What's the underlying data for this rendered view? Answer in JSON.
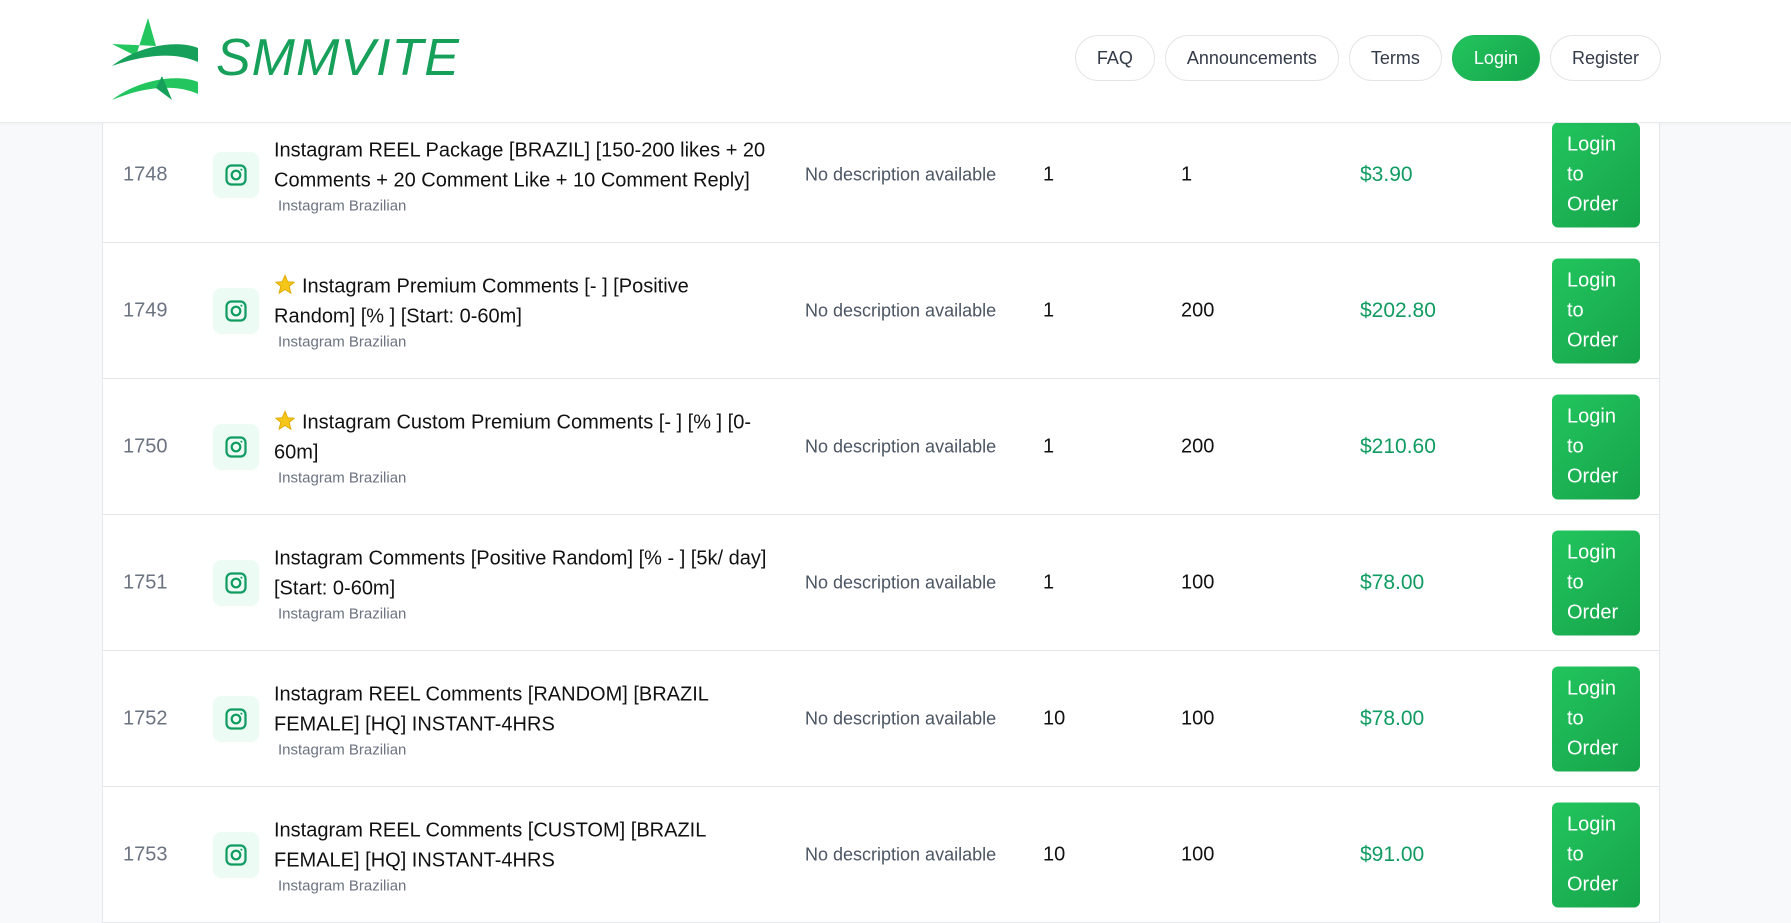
{
  "brand": {
    "name": "SMMVITE",
    "color": "#16a05a"
  },
  "nav": [
    {
      "label": "FAQ"
    },
    {
      "label": "Announcements"
    },
    {
      "label": "Terms"
    },
    {
      "label": "Login",
      "active": true
    },
    {
      "label": "Register"
    }
  ],
  "rows": [
    {
      "id": "1748",
      "icon": "instagram-icon",
      "starred": false,
      "name": "Instagram REEL Package [BRAZIL] [150-200 likes + 20 Comments + 20 Comment Like + 10 Comment Reply]",
      "category": "Instagram Brazilian",
      "description": "No description available",
      "min": "1",
      "max": "1",
      "price": "$3.90",
      "button": "Login to Order"
    },
    {
      "id": "1749",
      "icon": "instagram-icon",
      "starred": true,
      "name": "Instagram Premium Comments [- ] [Positive Random] [% ] [Start: 0-60m]",
      "category": "Instagram Brazilian",
      "description": "No description available",
      "min": "1",
      "max": "200",
      "price": "$202.80",
      "button": "Login to Order"
    },
    {
      "id": "1750",
      "icon": "instagram-icon",
      "starred": true,
      "name": "Instagram Custom Premium Comments [- ] [% ] [0-60m]",
      "category": "Instagram Brazilian",
      "description": "No description available",
      "min": "1",
      "max": "200",
      "price": "$210.60",
      "button": "Login to Order"
    },
    {
      "id": "1751",
      "icon": "instagram-icon",
      "starred": false,
      "name": "Instagram Comments [Positive Random] [% - ] [5k/ day] [Start: 0-60m]",
      "category": "Instagram Brazilian",
      "description": "No description available",
      "min": "1",
      "max": "100",
      "price": "$78.00",
      "button": "Login to Order"
    },
    {
      "id": "1752",
      "icon": "instagram-icon",
      "starred": false,
      "name": "Instagram REEL Comments [RANDOM] [BRAZIL FEMALE] [HQ] INSTANT-4HRS",
      "category": "Instagram Brazilian",
      "description": "No description available",
      "min": "10",
      "max": "100",
      "price": "$78.00",
      "button": "Login to Order"
    },
    {
      "id": "1753",
      "icon": "instagram-icon",
      "starred": false,
      "name": "Instagram REEL Comments [CUSTOM] [BRAZIL FEMALE] [HQ] INSTANT-4HRS",
      "category": "Instagram Brazilian",
      "description": "No description available",
      "min": "10",
      "max": "100",
      "price": "$91.00",
      "button": "Login to Order"
    }
  ]
}
